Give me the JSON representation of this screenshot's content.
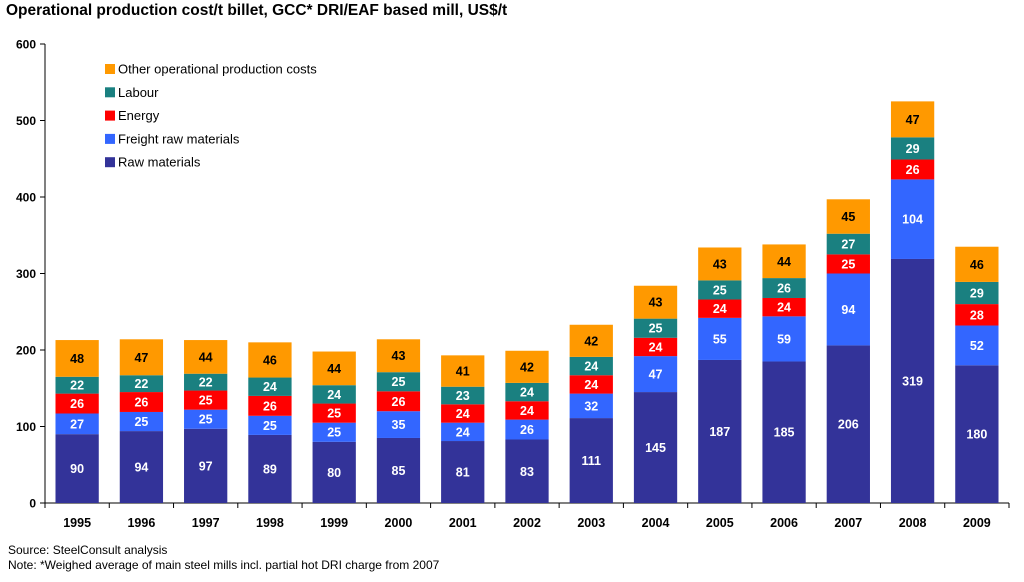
{
  "chart_data": {
    "type": "bar",
    "stacked": true,
    "title": "Operational production cost/t billet, GCC* DRI/EAF based mill, US$/t",
    "xlabel": "",
    "ylabel": "",
    "ylim": [
      0,
      600
    ],
    "yticks": [
      0,
      100,
      200,
      300,
      400,
      500,
      600
    ],
    "grid": false,
    "legend_position": "top-left",
    "categories": [
      "1995",
      "1996",
      "1997",
      "1998",
      "1999",
      "2000",
      "2001",
      "2002",
      "2003",
      "2004",
      "2005",
      "2006",
      "2007",
      "2008",
      "2009"
    ],
    "series": [
      {
        "name": "Raw materials",
        "color": "#333399",
        "values": [
          90,
          94,
          97,
          89,
          80,
          85,
          81,
          83,
          111,
          145,
          187,
          185,
          206,
          319,
          180
        ]
      },
      {
        "name": "Freight raw materials",
        "color": "#3366ff",
        "values": [
          27,
          25,
          25,
          25,
          25,
          35,
          24,
          26,
          32,
          47,
          55,
          59,
          94,
          104,
          52
        ]
      },
      {
        "name": "Energy",
        "color": "#ff0000",
        "values": [
          26,
          26,
          25,
          26,
          25,
          26,
          24,
          24,
          24,
          24,
          24,
          24,
          25,
          26,
          28
        ]
      },
      {
        "name": "Labour",
        "color": "#1a8080",
        "values": [
          22,
          22,
          22,
          24,
          24,
          25,
          23,
          24,
          24,
          25,
          25,
          26,
          27,
          29,
          29
        ]
      },
      {
        "name": "Other operational production costs",
        "color": "#ff9900",
        "values": [
          48,
          47,
          44,
          46,
          44,
          43,
          41,
          42,
          42,
          43,
          43,
          44,
          45,
          47,
          46
        ]
      }
    ]
  },
  "footer": {
    "source": "Source: SteelConsult analysis",
    "note": "Note: *Weighed average of main steel mills incl. partial hot DRI charge from 2007"
  }
}
